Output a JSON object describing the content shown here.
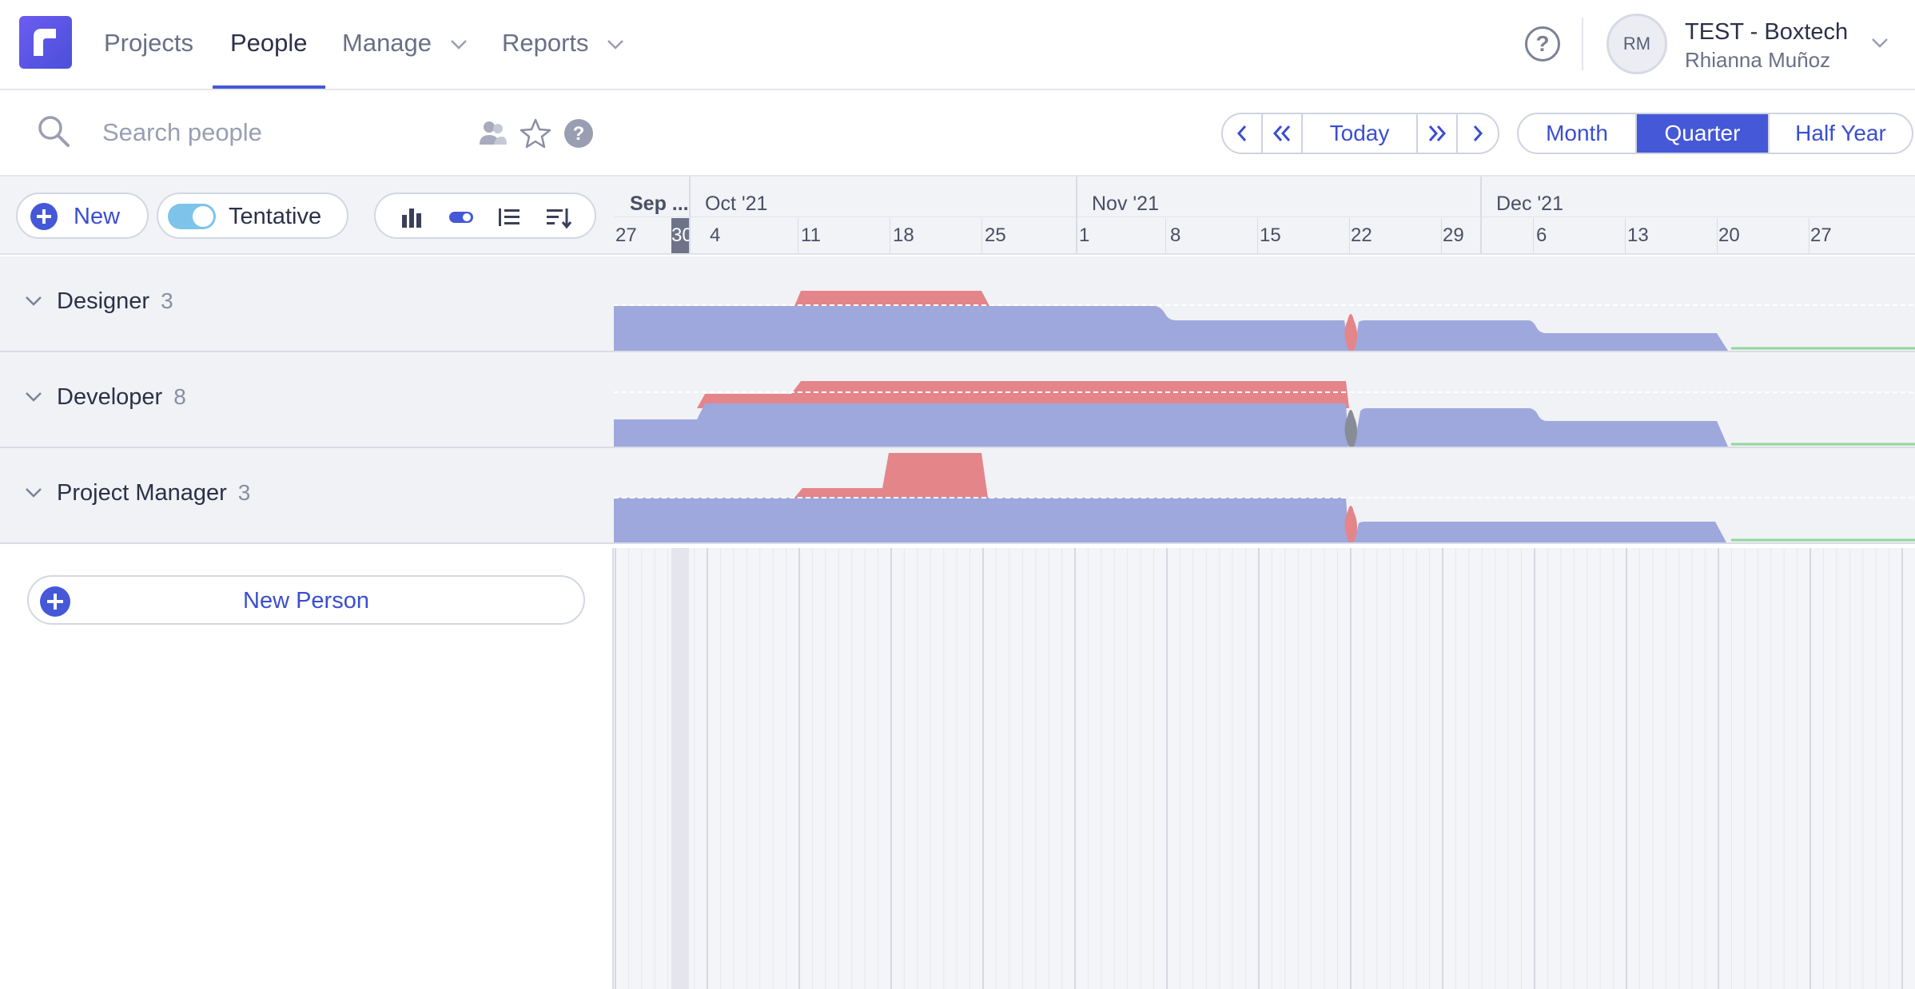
{
  "nav": {
    "items": [
      {
        "label": "Projects"
      },
      {
        "label": "People"
      },
      {
        "label": "Manage"
      },
      {
        "label": "Reports"
      }
    ],
    "active": "People",
    "account": {
      "initials": "RM",
      "name": "TEST - Boxtech",
      "user": "Rhianna Muñoz"
    }
  },
  "toolbar": {
    "search_placeholder": "Search people",
    "nav_buttons": {
      "today": "Today"
    },
    "range_options": [
      "Month",
      "Quarter",
      "Half Year"
    ],
    "range_selected": "Quarter"
  },
  "actions": {
    "new_label": "New",
    "tentative_label": "Tentative",
    "tentative_on": true,
    "new_person_label": "New Person"
  },
  "timeline": {
    "months": [
      "Sep ...",
      "Oct '21",
      "Nov '21",
      "Dec '21"
    ],
    "days": [
      "27",
      "30",
      "4",
      "11",
      "18",
      "25",
      "1",
      "8",
      "15",
      "22",
      "29",
      "6",
      "13",
      "20",
      "27"
    ]
  },
  "roles": [
    {
      "name": "Designer",
      "count": "3"
    },
    {
      "name": "Developer",
      "count": "8"
    },
    {
      "name": "Project Manager",
      "count": "3"
    }
  ],
  "colors": {
    "accent": "#4458d8",
    "availability": "#9ea8dd",
    "overbooked": "#e4858a",
    "tentative_gray": "#888c96",
    "free_line": "#8fd69a"
  }
}
